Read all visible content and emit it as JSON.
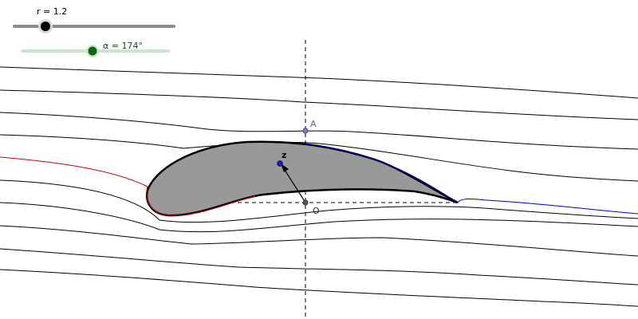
{
  "sliders": {
    "r": {
      "label": "r = 1.2",
      "value": 1.2
    },
    "alpha": {
      "label": "α = 174°",
      "value_deg": 174
    }
  },
  "points": {
    "A": {
      "label": "A"
    },
    "O": {
      "label": "O"
    },
    "z": {
      "label": "z"
    }
  },
  "colors": {
    "streamline": "#000000",
    "upper_stagnation": "#cc0000",
    "lower_stagnation": "#0000cc",
    "airfoil_fill": "#999999",
    "slider_track_r": "#8c8c8c",
    "slider_track_alpha": "#cfe3cf",
    "slider_knob_alpha": "#0b6b0b",
    "point_color": "#5a5acc"
  }
}
